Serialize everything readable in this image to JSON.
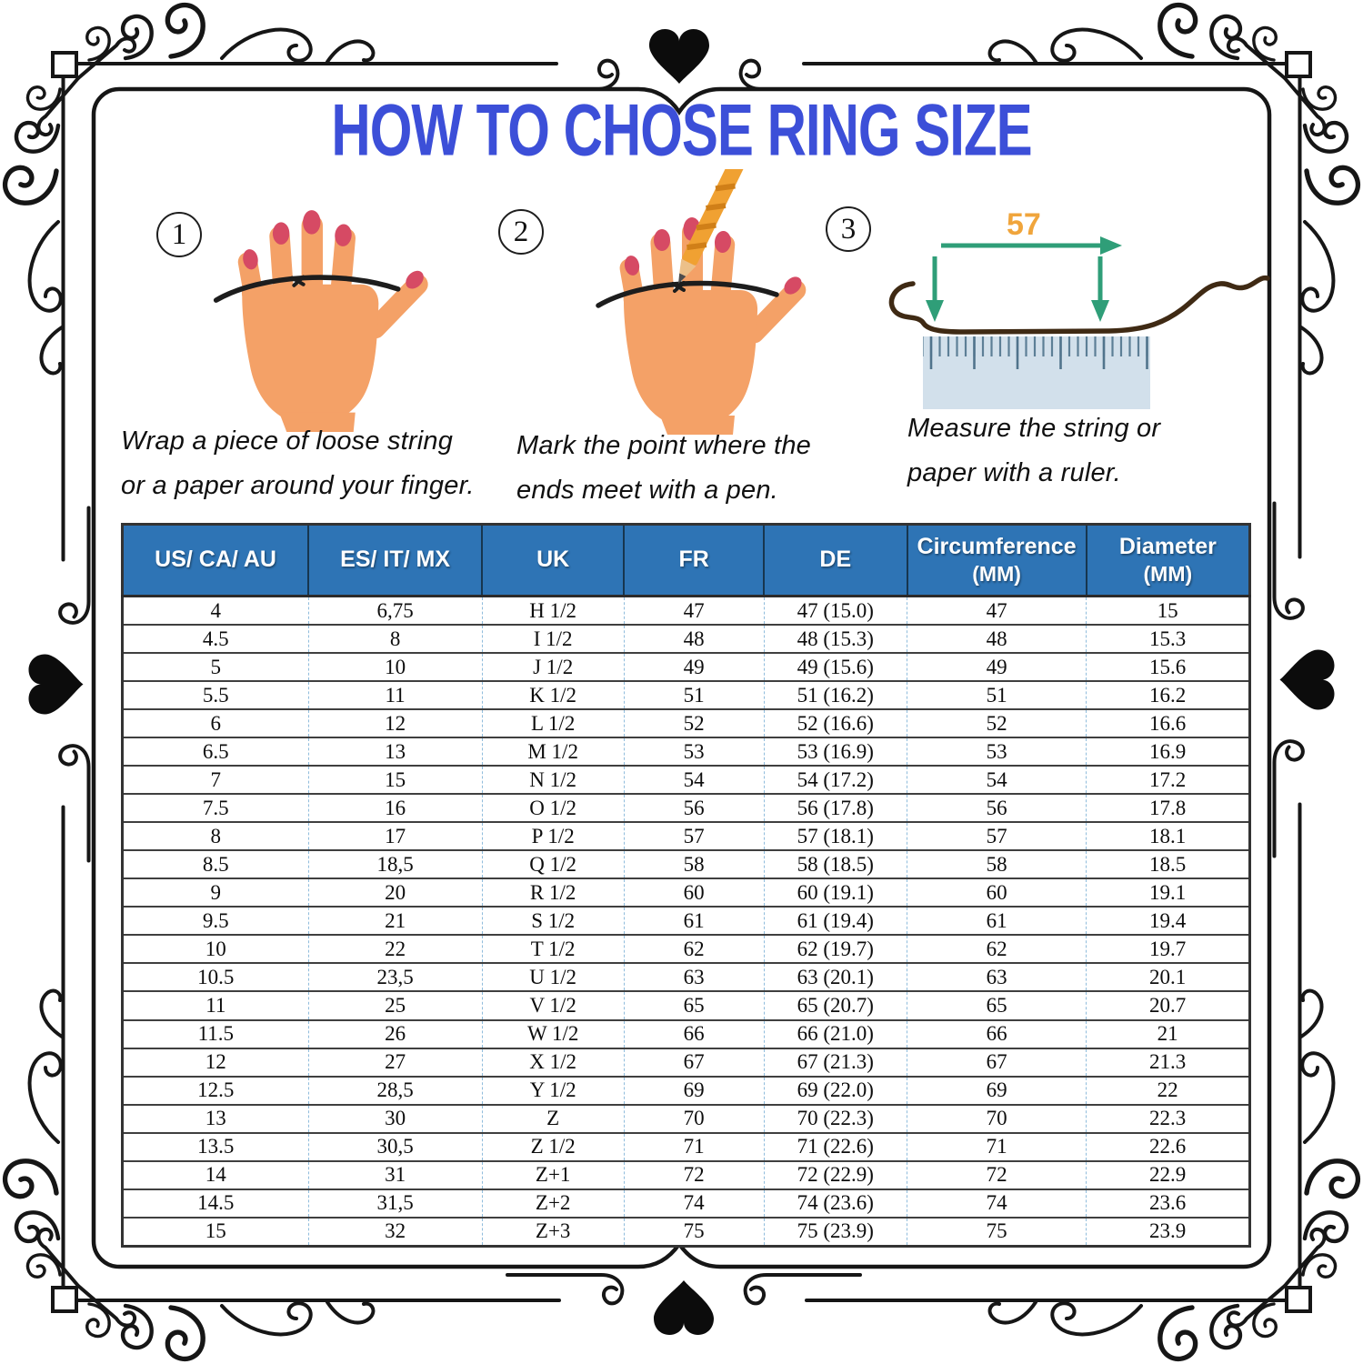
{
  "title": "HOW TO CHOSE RING SIZE",
  "steps": [
    {
      "number": "1",
      "line1": "Wrap a piece of loose string",
      "line2": "or a paper around your finger."
    },
    {
      "number": "2",
      "line1": "Mark the point where the",
      "line2": "ends meet with a pen."
    },
    {
      "number": "3",
      "line1": "Measure the string or",
      "line2": "paper with a ruler."
    }
  ],
  "illustration3": {
    "measurement": "57"
  },
  "size_table": {
    "headers": [
      {
        "label": "US/ CA/ AU",
        "sub": ""
      },
      {
        "label": "ES/ IT/ MX",
        "sub": ""
      },
      {
        "label": "UK",
        "sub": ""
      },
      {
        "label": "FR",
        "sub": ""
      },
      {
        "label": "DE",
        "sub": ""
      },
      {
        "label": "Circumference",
        "sub": "(MM)"
      },
      {
        "label": "Diameter",
        "sub": "(MM)"
      }
    ],
    "rows": [
      [
        "4",
        "6,75",
        "H 1/2",
        "47",
        "47 (15.0)",
        "47",
        "15"
      ],
      [
        "4.5",
        "8",
        "I 1/2",
        "48",
        "48 (15.3)",
        "48",
        "15.3"
      ],
      [
        "5",
        "10",
        "J 1/2",
        "49",
        "49 (15.6)",
        "49",
        "15.6"
      ],
      [
        "5.5",
        "11",
        "K 1/2",
        "51",
        "51 (16.2)",
        "51",
        "16.2"
      ],
      [
        "6",
        "12",
        "L 1/2",
        "52",
        "52 (16.6)",
        "52",
        "16.6"
      ],
      [
        "6.5",
        "13",
        "M 1/2",
        "53",
        "53 (16.9)",
        "53",
        "16.9"
      ],
      [
        "7",
        "15",
        "N 1/2",
        "54",
        "54 (17.2)",
        "54",
        "17.2"
      ],
      [
        "7.5",
        "16",
        "O 1/2",
        "56",
        "56 (17.8)",
        "56",
        "17.8"
      ],
      [
        "8",
        "17",
        "P 1/2",
        "57",
        "57 (18.1)",
        "57",
        "18.1"
      ],
      [
        "8.5",
        "18,5",
        "Q 1/2",
        "58",
        "58 (18.5)",
        "58",
        "18.5"
      ],
      [
        "9",
        "20",
        "R 1/2",
        "60",
        "60 (19.1)",
        "60",
        "19.1"
      ],
      [
        "9.5",
        "21",
        "S 1/2",
        "61",
        "61 (19.4)",
        "61",
        "19.4"
      ],
      [
        "10",
        "22",
        "T 1/2",
        "62",
        "62 (19.7)",
        "62",
        "19.7"
      ],
      [
        "10.5",
        "23,5",
        "U 1/2",
        "63",
        "63 (20.1)",
        "63",
        "20.1"
      ],
      [
        "11",
        "25",
        "V 1/2",
        "65",
        "65 (20.7)",
        "65",
        "20.7"
      ],
      [
        "11.5",
        "26",
        "W 1/2",
        "66",
        "66 (21.0)",
        "66",
        "21"
      ],
      [
        "12",
        "27",
        "X 1/2",
        "67",
        "67 (21.3)",
        "67",
        "21.3"
      ],
      [
        "12.5",
        "28,5",
        "Y 1/2",
        "69",
        "69 (22.0)",
        "69",
        "22"
      ],
      [
        "13",
        "30",
        "Z",
        "70",
        "70 (22.3)",
        "70",
        "22.3"
      ],
      [
        "13.5",
        "30,5",
        "Z 1/2",
        "71",
        "71 (22.6)",
        "71",
        "22.6"
      ],
      [
        "14",
        "31",
        "Z+1",
        "72",
        "72 (22.9)",
        "72",
        "22.9"
      ],
      [
        "14.5",
        "31,5",
        "Z+2",
        "74",
        "74 (23.6)",
        "74",
        "23.6"
      ],
      [
        "15",
        "32",
        "Z+3",
        "75",
        "75 (23.9)",
        "75",
        "23.9"
      ]
    ]
  },
  "colors": {
    "title_blue": "#3c4fd8",
    "table_header_bg": "#2e74b5",
    "table_header_text": "#ffffff",
    "frame_black": "#161616",
    "hand_skin": "#f4a167",
    "nail_red": "#d64a64",
    "pencil_orange": "#f0a132",
    "arrow_green": "#2f9e78",
    "measurement_orange": "#f0a53c",
    "ruler_blue": "#d2e0eb",
    "string_brown": "#3f2a14",
    "cell_divider_blue": "#8fbcdc"
  }
}
